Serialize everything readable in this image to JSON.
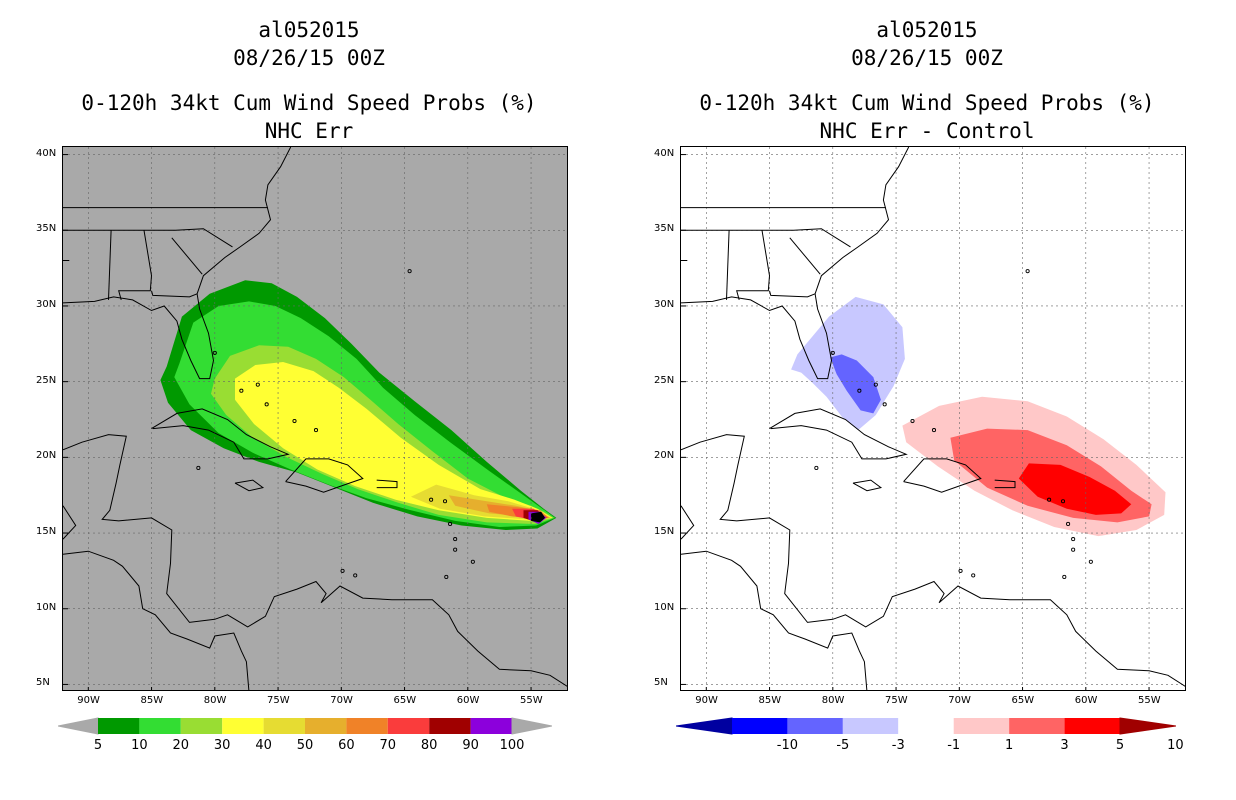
{
  "panels": [
    {
      "title_storm": "al052015",
      "title_time": "08/26/15 00Z",
      "title_var": "0-120h 34kt Cum Wind Speed Probs (%)",
      "title_run": "NHC Err"
    },
    {
      "title_storm": "al052015",
      "title_time": "08/26/15 00Z",
      "title_var": "0-120h 34kt Cum Wind Speed Probs (%)",
      "title_run": "NHC Err - Control"
    }
  ],
  "chart_data": [
    {
      "type": "heatmap",
      "title": "0-120h 34kt Cum Wind Speed Probs (%)",
      "subtitle": "NHC Err",
      "storm": "al052015",
      "valid": "08/26/15 00Z",
      "lat_ticks": [
        "40N",
        "35N",
        "30N",
        "25N",
        "20N",
        "15N",
        "10N",
        "5N"
      ],
      "lon_ticks": [
        "90W",
        "85W",
        "80W",
        "75W",
        "70W",
        "65W",
        "60W",
        "55W"
      ],
      "lat_range": [
        4.5,
        40.5
      ],
      "lon_range": [
        -92,
        -52
      ],
      "colorbar": {
        "levels": [
          "5",
          "10",
          "20",
          "30",
          "40",
          "50",
          "60",
          "70",
          "80",
          "90",
          "100"
        ],
        "colors": [
          "#009900",
          "#33dd33",
          "#99dd33",
          "#ffff33",
          "#e6dc32",
          "#e6af2d",
          "#f08228",
          "#fa3c3c",
          "#a00000",
          "#8c00dc"
        ]
      },
      "contours": [
        {
          "level": 5,
          "lon": [
            -83.8,
            -82.6,
            -80.4,
            -77.6,
            -75.5,
            -73.5,
            -71.3,
            -69.2,
            -67,
            -64.2,
            -61.3,
            -58.5,
            -55.8,
            -54,
            -53,
            -54.5,
            -57,
            -60.5,
            -64,
            -67.5,
            -70.5,
            -73.5,
            -76.5,
            -79.3,
            -81.9,
            -83.7,
            -84.3
          ],
          "lat": [
            26,
            29.3,
            30.8,
            31.7,
            31.5,
            30.6,
            29.2,
            27.5,
            25.6,
            23.7,
            21.8,
            19.7,
            17.8,
            16.6,
            16,
            15.3,
            15.2,
            15.5,
            16.1,
            17,
            18,
            19,
            19.7,
            20.6,
            21.8,
            23.6,
            25.1
          ]
        },
        {
          "level": 10,
          "lon": [
            -82.8,
            -81.7,
            -79.7,
            -77.3,
            -75.2,
            -73.2,
            -71,
            -68.8,
            -66.7,
            -64.2,
            -61.4,
            -58.3,
            -55.6,
            -54.1,
            -53.1,
            -54.6,
            -57.5,
            -61,
            -64.5,
            -68,
            -71,
            -74,
            -77,
            -79.7,
            -82,
            -83.2
          ],
          "lat": [
            26.2,
            28.9,
            30,
            30.3,
            30,
            29.2,
            28,
            26.5,
            24.6,
            22.8,
            21,
            19.1,
            17.5,
            16.6,
            16,
            15.5,
            15.4,
            15.8,
            16.5,
            17.3,
            18.2,
            19.2,
            20.3,
            21.6,
            23.5,
            25.3
          ]
        },
        {
          "level": 20,
          "lon": [
            -80,
            -78.8,
            -76.5,
            -74.2,
            -72,
            -69.8,
            -67.7,
            -65.5,
            -62.8,
            -60,
            -57.2,
            -55,
            -54,
            -53.2,
            -54.7,
            -58.5,
            -62.3,
            -65.5,
            -68.7,
            -71.5,
            -74.3,
            -77,
            -79.1,
            -80.3
          ],
          "lat": [
            25.2,
            26.7,
            27.4,
            27.3,
            26.5,
            25.3,
            23.8,
            22.2,
            20.4,
            18.6,
            17.4,
            16.8,
            16.4,
            16,
            15.6,
            15.7,
            16.2,
            17,
            17.9,
            18.9,
            20,
            21.3,
            22.8,
            24.2
          ]
        },
        {
          "level": 30,
          "lon": [
            -78.4,
            -76.8,
            -74.6,
            -72.2,
            -70.2,
            -68,
            -65.3,
            -62.3,
            -59,
            -56.3,
            -54.5,
            -53.3,
            -55,
            -58.5,
            -62.3,
            -65.7,
            -68.9,
            -71.9,
            -74.6,
            -76.9,
            -78.4
          ],
          "lat": [
            25.2,
            26.1,
            26.3,
            25.7,
            24.6,
            23.2,
            21.3,
            19.5,
            17.9,
            17.2,
            16.6,
            16,
            15.8,
            16,
            16.5,
            17.2,
            18.1,
            19.2,
            20.6,
            22.2,
            23.8
          ]
        },
        {
          "level": 40,
          "lon": [
            -62.5,
            -59.5,
            -56.8,
            -54.8,
            -53.4,
            -55.3,
            -58.7,
            -62.2,
            -64.5
          ],
          "lat": [
            18.2,
            17.5,
            17.1,
            16.6,
            16,
            15.9,
            16.1,
            16.6,
            17.4
          ]
        },
        {
          "level": 50,
          "lon": [
            -61.5,
            -58.5,
            -56.2,
            -54.5,
            -53.5,
            -55.5,
            -58.3,
            -61
          ],
          "lat": [
            17.5,
            17.1,
            16.8,
            16.5,
            16,
            16.1,
            16.3,
            16.8
          ]
        },
        {
          "level": 60,
          "lon": [
            -58.5,
            -56,
            -54.3,
            -53.6,
            -54.5,
            -56.5,
            -58.3
          ],
          "lat": [
            16.9,
            16.7,
            16.5,
            16,
            15.9,
            16.1,
            16.4
          ]
        },
        {
          "level": 70,
          "lon": [
            -56.5,
            -54.8,
            -53.7,
            -54.6,
            -56.2
          ],
          "lat": [
            16.6,
            16.6,
            16,
            15.8,
            16.1
          ]
        },
        {
          "level": 80,
          "lon": [
            -55.6,
            -54.5,
            -53.8,
            -54.6,
            -55.6
          ],
          "lat": [
            16.5,
            16.5,
            16,
            15.7,
            16
          ]
        },
        {
          "level": 90,
          "lon": [
            -55.2,
            -54.3,
            -53.8,
            -54.4,
            -55.2
          ],
          "lat": [
            16.4,
            16.4,
            16,
            15.6,
            15.9
          ]
        },
        {
          "level": 100,
          "lon": [
            -55,
            -54.2,
            -53.9,
            -54.3,
            -55
          ],
          "lat": [
            16.3,
            16.4,
            16,
            15.7,
            15.8
          ]
        }
      ]
    },
    {
      "type": "heatmap",
      "title": "0-120h 34kt Cum Wind Speed Probs (%)",
      "subtitle": "NHC Err - Control",
      "storm": "al052015",
      "valid": "08/26/15 00Z",
      "lat_ticks": [
        "40N",
        "35N",
        "30N",
        "25N",
        "20N",
        "15N",
        "10N",
        "5N"
      ],
      "lon_ticks": [
        "90W",
        "85W",
        "80W",
        "75W",
        "70W",
        "65W",
        "60W",
        "55W"
      ],
      "lat_range": [
        4.5,
        40.5
      ],
      "lon_range": [
        -92,
        -52
      ],
      "colorbar": {
        "levels": [
          "-10",
          "-5",
          "-3",
          "-1",
          "1",
          "3",
          "5",
          "10"
        ],
        "colors": [
          "#0000a0",
          "#0000ff",
          "#6464ff",
          "#c8c8ff",
          "#ffffff",
          "#ffc8c8",
          "#ff6464",
          "#ff0000",
          "#a00000"
        ]
      },
      "contours": [
        {
          "level": -1,
          "lon": [
            -82.8,
            -80.3,
            -78.2,
            -76,
            -74.5,
            -74.3,
            -75.2,
            -76.6,
            -78,
            -79.3,
            -80.5,
            -81.7,
            -82.5,
            -83.3
          ],
          "lat": [
            26.8,
            29.3,
            30.6,
            30.1,
            28.6,
            26.5,
            24.7,
            22.8,
            21.8,
            22.7,
            24,
            25,
            25.6,
            25.8
          ]
        },
        {
          "level": -3,
          "lon": [
            -80.2,
            -79.3,
            -78.1,
            -76.8,
            -76.2,
            -76.8,
            -77.8,
            -78.9,
            -79.7
          ],
          "lat": [
            26.6,
            26.8,
            26.4,
            25.3,
            23.8,
            22.9,
            23.1,
            24.4,
            25.5
          ]
        },
        {
          "level": 1,
          "lon": [
            -74.5,
            -71.6,
            -68.2,
            -64.6,
            -61.5,
            -58.6,
            -56,
            -53.7,
            -53.8,
            -56,
            -59,
            -62.5,
            -65.8,
            -68.8,
            -71.7,
            -74.2
          ],
          "lat": [
            22.1,
            23.4,
            24,
            23.7,
            22.7,
            21.2,
            19.5,
            17.7,
            16.2,
            15.2,
            14.8,
            15.4,
            16.5,
            17.8,
            19.4,
            21
          ]
        },
        {
          "level": 3,
          "lon": [
            -70.7,
            -67.8,
            -64.6,
            -61.5,
            -58.8,
            -56.4,
            -54.8,
            -55,
            -57.5,
            -61,
            -64.6,
            -67.8,
            -70.4
          ],
          "lat": [
            21.3,
            21.9,
            21.8,
            20.8,
            19.4,
            17.8,
            16.9,
            16.1,
            15.7,
            16,
            16.8,
            18,
            19.8
          ]
        },
        {
          "level": 5,
          "lon": [
            -64.5,
            -62,
            -59.7,
            -57.7,
            -56.4,
            -57.2,
            -59.2,
            -61.5,
            -63.8,
            -65.3
          ],
          "lat": [
            19.6,
            19.5,
            18.7,
            17.8,
            16.9,
            16.3,
            16.2,
            16.6,
            17.4,
            18.6
          ]
        }
      ]
    }
  ]
}
